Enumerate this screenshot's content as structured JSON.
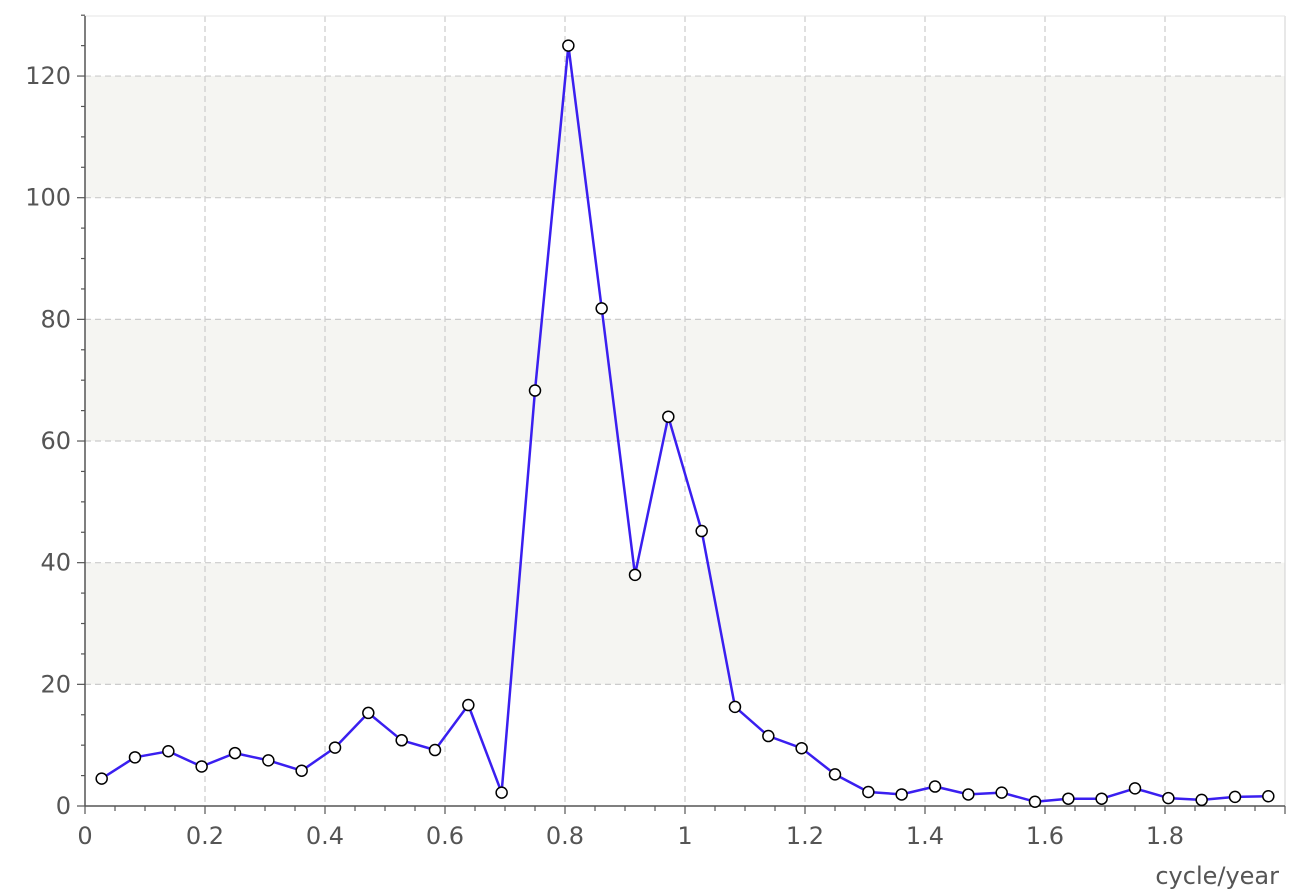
{
  "chart_data": {
    "type": "line",
    "title": "",
    "xlabel": "cycle/year",
    "ylabel": "",
    "xlim": [
      0,
      2.0
    ],
    "ylim": [
      0,
      130
    ],
    "x_ticks": [
      0,
      0.2,
      0.4,
      0.6,
      0.8,
      1,
      1.2,
      1.4,
      1.6,
      1.8
    ],
    "x_tick_labels": [
      "0",
      "0.2",
      "0.4",
      "0.6",
      "0.8",
      "1",
      "1.2",
      "1.4",
      "1.6",
      "1.8"
    ],
    "y_ticks": [
      0,
      20,
      40,
      60,
      80,
      100,
      120
    ],
    "y_tick_labels": [
      "0",
      "20",
      "40",
      "60",
      "80",
      "100",
      "120"
    ],
    "grid": true,
    "legend": "none",
    "colors": {
      "line": "#3a1ff0",
      "marker_fill": "#ffffff",
      "marker_stroke": "#000000",
      "band": "#f5f5f2",
      "grid": "#cccccc",
      "axis": "#555555"
    },
    "series": [
      {
        "x": [
          0.0278,
          0.0833,
          0.1389,
          0.1944,
          0.25,
          0.3056,
          0.3611,
          0.4167,
          0.4722,
          0.5278,
          0.5833,
          0.6389,
          0.6944,
          0.75,
          0.8056,
          0.8611,
          0.9167,
          0.9722,
          1.0278,
          1.0833,
          1.1389,
          1.1944,
          1.25,
          1.3056,
          1.3611,
          1.4167,
          1.4722,
          1.5278,
          1.5833,
          1.6389,
          1.6944,
          1.75,
          1.8056,
          1.8611,
          1.9167,
          1.9722
        ],
        "values": [
          4.5,
          8.0,
          9.0,
          6.5,
          8.7,
          7.5,
          5.8,
          9.6,
          15.3,
          10.8,
          9.2,
          16.6,
          2.2,
          68.3,
          125.0,
          81.8,
          38.0,
          64.0,
          45.2,
          16.3,
          11.5,
          9.5,
          5.2,
          2.3,
          1.9,
          3.2,
          1.9,
          2.2,
          0.7,
          1.2,
          1.2,
          2.9,
          1.3,
          1.0,
          1.5,
          1.6
        ]
      }
    ]
  }
}
